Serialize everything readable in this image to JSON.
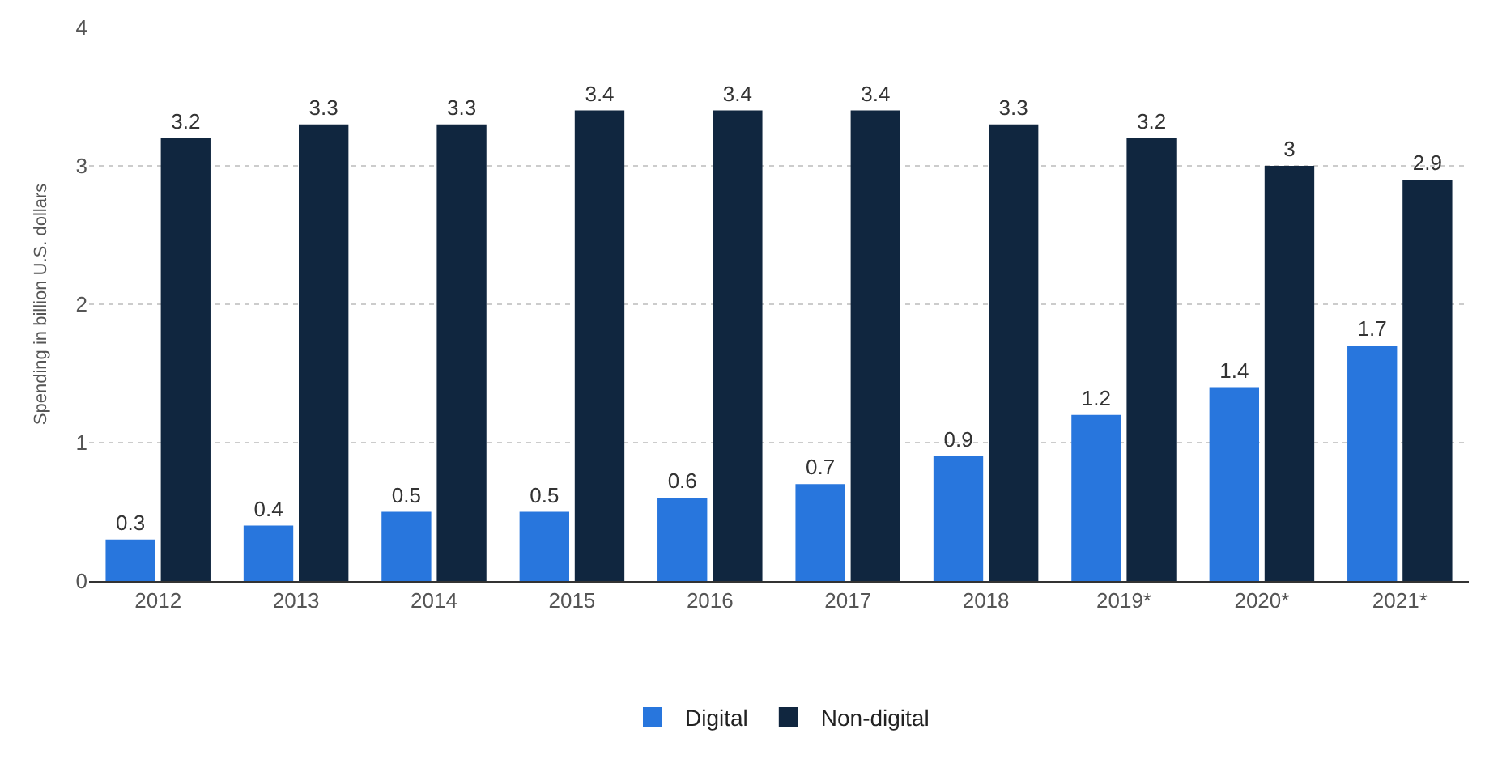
{
  "chart_data": {
    "type": "bar",
    "ylabel": "Spending in billion U.S. dollars",
    "categories": [
      "2012",
      "2013",
      "2014",
      "2015",
      "2016",
      "2017",
      "2018",
      "2019*",
      "2020*",
      "2021*"
    ],
    "series": [
      {
        "name": "Digital",
        "color": "#2876dd",
        "values": [
          0.3,
          0.4,
          0.5,
          0.5,
          0.6,
          0.7,
          0.9,
          1.2,
          1.4,
          1.7
        ]
      },
      {
        "name": "Non-digital",
        "color": "#10263f",
        "values": [
          3.2,
          3.3,
          3.3,
          3.4,
          3.4,
          3.4,
          3.3,
          3.2,
          3,
          2.9
        ]
      }
    ],
    "ylim": [
      0,
      4
    ],
    "yticks": [
      0,
      1,
      2,
      3,
      4
    ],
    "grid": "y",
    "legend": "bottom",
    "data_labels": true
  }
}
